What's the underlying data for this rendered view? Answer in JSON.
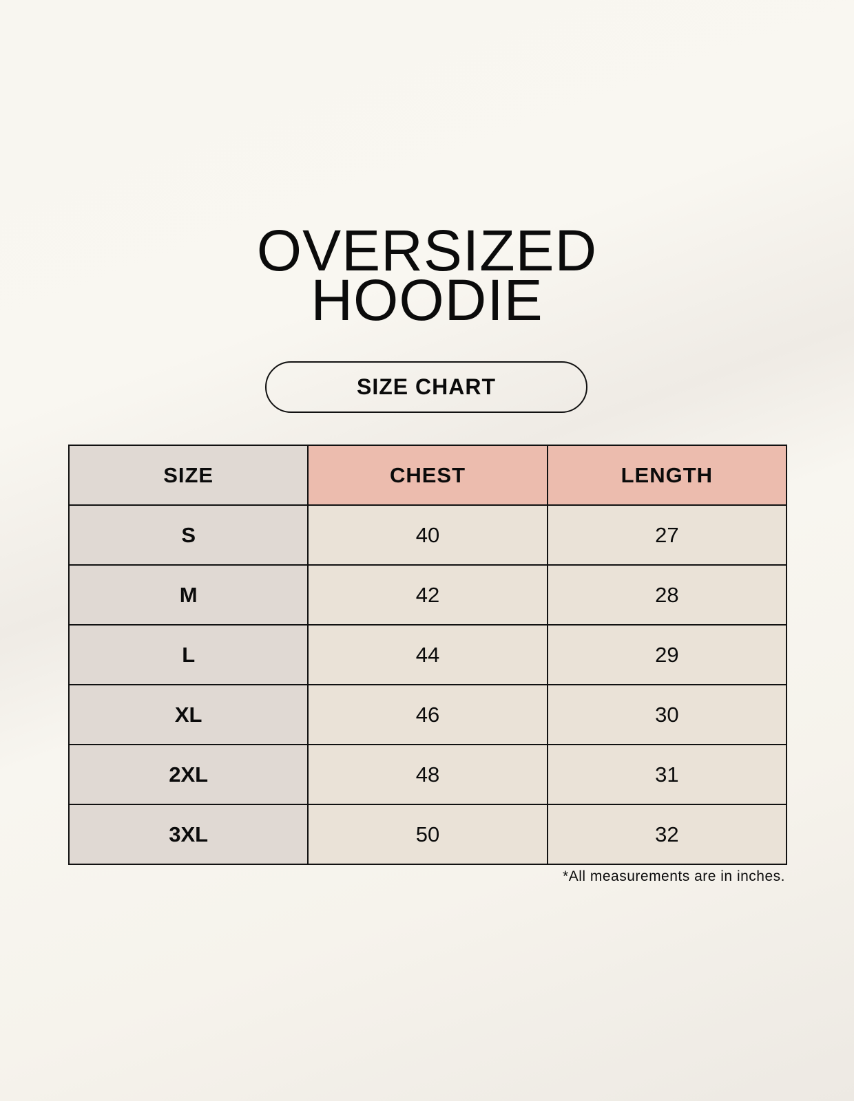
{
  "title": {
    "line1": "OVERSIZED",
    "line2": "HOODIE"
  },
  "subtitle": "SIZE CHART",
  "table": {
    "headers": [
      "SIZE",
      "CHEST",
      "LENGTH"
    ],
    "rows": [
      [
        "S",
        "40",
        "27"
      ],
      [
        "M",
        "42",
        "28"
      ],
      [
        "L",
        "44",
        "29"
      ],
      [
        "XL",
        "46",
        "30"
      ],
      [
        "2XL",
        "48",
        "31"
      ],
      [
        "3XL",
        "50",
        "32"
      ]
    ]
  },
  "footnote": "*All measurements are in inches.",
  "colors": {
    "size_column": "#e0d9d3",
    "header_accent": "#ecbcae",
    "cell": "#eae2d7",
    "background": "#f8f6f0"
  }
}
